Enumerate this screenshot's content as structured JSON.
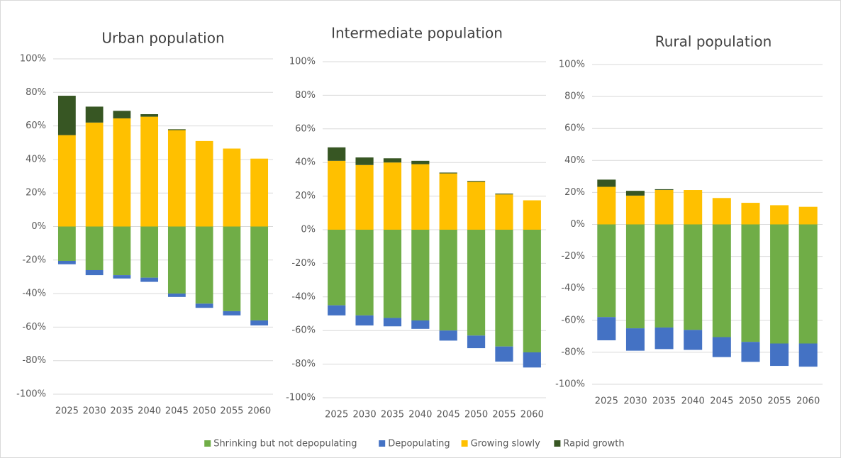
{
  "chart_data": [
    {
      "type": "bar",
      "stacked": true,
      "title": "Urban population",
      "categories": [
        "2025",
        "2030",
        "2035",
        "2040",
        "2045",
        "2050",
        "2055",
        "2060"
      ],
      "ylim": [
        -100,
        100
      ],
      "yticks": [
        {
          "value": 100,
          "label": "100%"
        },
        {
          "value": 80,
          "label": "80%"
        },
        {
          "value": 60,
          "label": "60%"
        },
        {
          "value": 40,
          "label": "40%"
        },
        {
          "value": 20,
          "label": "20%"
        },
        {
          "value": 0,
          "label": "0%"
        },
        {
          "value": -20,
          "label": "-20%"
        },
        {
          "value": -40,
          "label": "-40%"
        },
        {
          "value": -60,
          "label": "-60%"
        },
        {
          "value": -80,
          "label": "-80%"
        },
        {
          "value": -100,
          "label": "-100%"
        }
      ],
      "grid": true,
      "series": [
        {
          "name": "Shrinking but not depopulating",
          "color": "#70ad47",
          "values": [
            -20.5,
            -26,
            -29,
            -30.5,
            -40,
            -46,
            -50.5,
            -56
          ]
        },
        {
          "name": "Depopulating",
          "color": "#4472c4",
          "values": [
            -2,
            -3,
            -2,
            -2.5,
            -2,
            -2.5,
            -2.5,
            -3
          ]
        },
        {
          "name": "Growing slowly",
          "color": "#ffc000",
          "values": [
            54.5,
            62,
            64.5,
            65.5,
            57.5,
            51,
            46.5,
            40.5
          ]
        },
        {
          "name": "Rapid growth",
          "color": "#375623",
          "values": [
            23.5,
            9.5,
            4.5,
            1.5,
            0.5,
            0,
            0,
            0
          ]
        }
      ]
    },
    {
      "type": "bar",
      "stacked": true,
      "title": "Intermediate population",
      "categories": [
        "2025",
        "2030",
        "2035",
        "2040",
        "2045",
        "2050",
        "2055",
        "2060"
      ],
      "ylim": [
        -100,
        100
      ],
      "yticks": [
        {
          "value": 100,
          "label": "100%"
        },
        {
          "value": 80,
          "label": "80%"
        },
        {
          "value": 60,
          "label": "60%"
        },
        {
          "value": 40,
          "label": "40%"
        },
        {
          "value": 20,
          "label": "20%"
        },
        {
          "value": 0,
          "label": "0%"
        },
        {
          "value": -20,
          "label": "-20%"
        },
        {
          "value": -40,
          "label": "-40%"
        },
        {
          "value": -60,
          "label": "-60%"
        },
        {
          "value": -80,
          "label": "-80%"
        },
        {
          "value": -100,
          "label": "-100%"
        }
      ],
      "grid": true,
      "series": [
        {
          "color": "#70ad47",
          "values": [
            -45,
            -51,
            -52.5,
            -54,
            -60,
            -63,
            -69.5,
            -73
          ]
        },
        {
          "color": "#4472c4",
          "values": [
            -6,
            -6,
            -5,
            -5,
            -6,
            -7.5,
            -9,
            -9
          ]
        },
        {
          "color": "#ffc000",
          "values": [
            41,
            38.5,
            40,
            39,
            33.5,
            28.5,
            21,
            17.5
          ]
        },
        {
          "color": "#375623",
          "values": [
            8,
            4.5,
            2.5,
            2,
            0.5,
            0.5,
            0.5,
            0
          ]
        }
      ]
    },
    {
      "type": "bar",
      "stacked": true,
      "title": "Rural population",
      "categories": [
        "2025",
        "2030",
        "2035",
        "2040",
        "2045",
        "2050",
        "2055",
        "2060"
      ],
      "ylim": [
        -100,
        100
      ],
      "yticks": [
        {
          "value": 100,
          "label": "100%"
        },
        {
          "value": 80,
          "label": "80%"
        },
        {
          "value": 60,
          "label": "60%"
        },
        {
          "value": 40,
          "label": "40%"
        },
        {
          "value": 20,
          "label": "20%"
        },
        {
          "value": 0,
          "label": "0%"
        },
        {
          "value": -20,
          "label": "-20%"
        },
        {
          "value": -40,
          "label": "-40%"
        },
        {
          "value": -60,
          "label": "-60%"
        },
        {
          "value": -80,
          "label": "-80%"
        },
        {
          "value": -100,
          "label": "-100%"
        }
      ],
      "grid": true,
      "series": [
        {
          "color": "#70ad47",
          "values": [
            -58,
            -65,
            -64.5,
            -66,
            -70.5,
            -73.5,
            -74.5,
            -74.5
          ]
        },
        {
          "color": "#4472c4",
          "values": [
            -14.5,
            -14,
            -13.5,
            -12.5,
            -12.5,
            -12.5,
            -14,
            -14.5
          ]
        },
        {
          "color": "#ffc000",
          "values": [
            23.5,
            18,
            21.5,
            21.5,
            16.5,
            13.5,
            12,
            11
          ]
        },
        {
          "color": "#375623",
          "values": [
            4.5,
            3,
            0.5,
            0,
            0,
            0,
            0,
            0
          ]
        }
      ]
    }
  ]
}
